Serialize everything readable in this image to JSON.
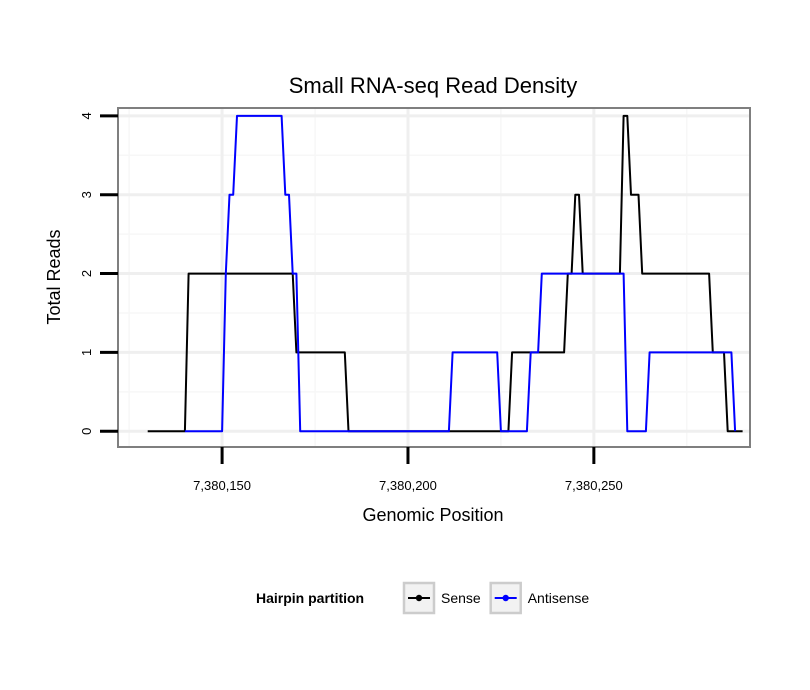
{
  "chart_data": {
    "type": "line",
    "title": "Small RNA-seq Read Density",
    "xlabel": "Genomic Position",
    "ylabel": "Total Reads",
    "xlim": [
      7380122,
      7380292
    ],
    "ylim": [
      -0.2,
      4.1
    ],
    "x_ticks": [
      7380150,
      7380200,
      7380250
    ],
    "x_tick_labels": [
      "7,380,150",
      "7,380,200",
      "7,380,250"
    ],
    "y_ticks": [
      0,
      1,
      2,
      3,
      4
    ],
    "y_tick_labels": [
      "0",
      "1",
      "2",
      "3",
      "4"
    ],
    "grid": true,
    "legend": {
      "title": "Hairpin partition",
      "position": "bottom"
    },
    "series": [
      {
        "name": "Sense",
        "color": "#000000",
        "x": [
          7380130,
          7380140,
          7380141,
          7380169,
          7380170,
          7380183,
          7380184,
          7380227,
          7380228,
          7380242,
          7380243,
          7380244,
          7380245,
          7380246,
          7380247,
          7380257,
          7380258,
          7380259,
          7380260,
          7380262,
          7380263,
          7380265,
          7380266,
          7380281,
          7380282,
          7380285,
          7380286,
          7380290
        ],
        "y": [
          0,
          0,
          2,
          2,
          1,
          1,
          0,
          0,
          1,
          1,
          2,
          2,
          3,
          3,
          2,
          2,
          4,
          4,
          3,
          3,
          2,
          2,
          2,
          2,
          1,
          1,
          0,
          0
        ]
      },
      {
        "name": "Antisense",
        "color": "#0000ff",
        "x": [
          7380140,
          7380150,
          7380151,
          7380152,
          7380153,
          7380154,
          7380155,
          7380166,
          7380167,
          7380168,
          7380169,
          7380170,
          7380171,
          7380211,
          7380212,
          7380224,
          7380225,
          7380232,
          7380233,
          7380235,
          7380236,
          7380237,
          7380238,
          7380243,
          7380244,
          7380258,
          7380259,
          7380264,
          7380265,
          7380287,
          7380288
        ],
        "y": [
          0,
          0,
          2,
          3,
          3,
          4,
          4,
          4,
          3,
          3,
          2,
          2,
          0,
          0,
          1,
          1,
          0,
          0,
          1,
          1,
          2,
          2,
          2,
          2,
          2,
          2,
          0,
          0,
          1,
          1,
          0
        ]
      }
    ]
  }
}
